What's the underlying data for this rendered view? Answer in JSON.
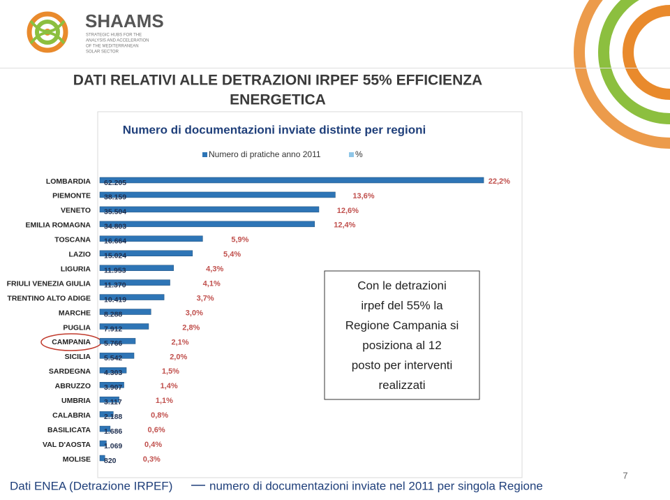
{
  "header": {
    "brand": "SHAAMS",
    "tagline": [
      "STRATEGIC HUBS FOR THE",
      "ANALYSIS AND ACCELERATION",
      "OF THE MEDITERRANEAN",
      "SOLAR SECTOR"
    ]
  },
  "slide_title": [
    "DATI RELATIVI ALLE DETRAZIONI IRPEF 55% EFFICIENZA",
    "ENERGETICA"
  ],
  "chart_data": {
    "type": "bar",
    "orientation": "horizontal",
    "title": "Numero di documentazioni inviate distinte per regioni",
    "categories": [
      "LOMBARDIA",
      "PIEMONTE",
      "VENETO",
      "EMILIA ROMAGNA",
      "TOSCANA",
      "LAZIO",
      "LIGURIA",
      "FRIULI VENEZIA GIULIA",
      "TRENTINO ALTO ADIGE",
      "MARCHE",
      "PUGLIA",
      "CAMPANIA",
      "SICILIA",
      "SARDEGNA",
      "ABRUZZO",
      "UMBRIA",
      "CALABRIA",
      "BASILICATA",
      "VAL D'AOSTA",
      "MOLISE"
    ],
    "series": [
      {
        "name": "Numero di pratiche anno 2011",
        "color": "#2e75b6",
        "label_color": "#1f2f4f",
        "values": [
          62205,
          38159,
          35504,
          34803,
          16664,
          15024,
          11953,
          11370,
          10419,
          8288,
          7912,
          5766,
          5542,
          4303,
          3907,
          3117,
          2188,
          1686,
          1069,
          820
        ],
        "value_labels": [
          "62.205",
          "38.159",
          "35.504",
          "34.803",
          "16.664",
          "15.024",
          "11.953",
          "11.370",
          "10.419",
          "8.288",
          "7.912",
          "5.766",
          "5.542",
          "4.303",
          "3.907",
          "3.117",
          "2.188",
          "1.686",
          "1.069",
          "820"
        ]
      },
      {
        "name": "%",
        "color": "#8fc6e8",
        "label_color": "#c0504d",
        "axis": "x2",
        "values": [
          22.2,
          13.6,
          12.6,
          12.4,
          5.9,
          5.4,
          4.3,
          4.1,
          3.7,
          3.0,
          2.8,
          2.1,
          2.0,
          1.5,
          1.4,
          1.1,
          0.8,
          0.6,
          0.4,
          0.3
        ],
        "value_labels": [
          "22,2%",
          "13,6%",
          "12,6%",
          "12,4%",
          "5,9%",
          "5,4%",
          "4,3%",
          "4,1%",
          "3,7%",
          "3,0%",
          "2,8%",
          "2,1%",
          "2,0%",
          "1,5%",
          "1,4%",
          "1,1%",
          "0,8%",
          "0,6%",
          "0,4%",
          "0,3%"
        ]
      }
    ],
    "xlim": [
      0,
      70000
    ],
    "x2lim": [
      0,
      25
    ],
    "highlight_category": 11
  },
  "text_box": [
    "Con le detrazioni",
    "irpef del 55% la",
    "Regione Campania si",
    "posiziona al 12",
    "posto per interventi",
    "realizzati"
  ],
  "footer": {
    "source": "Dati ENEA (Detrazione IRPEF)",
    "description": "numero di documentazioni inviate nel 2011 per singola Regione"
  },
  "page_number": "7"
}
